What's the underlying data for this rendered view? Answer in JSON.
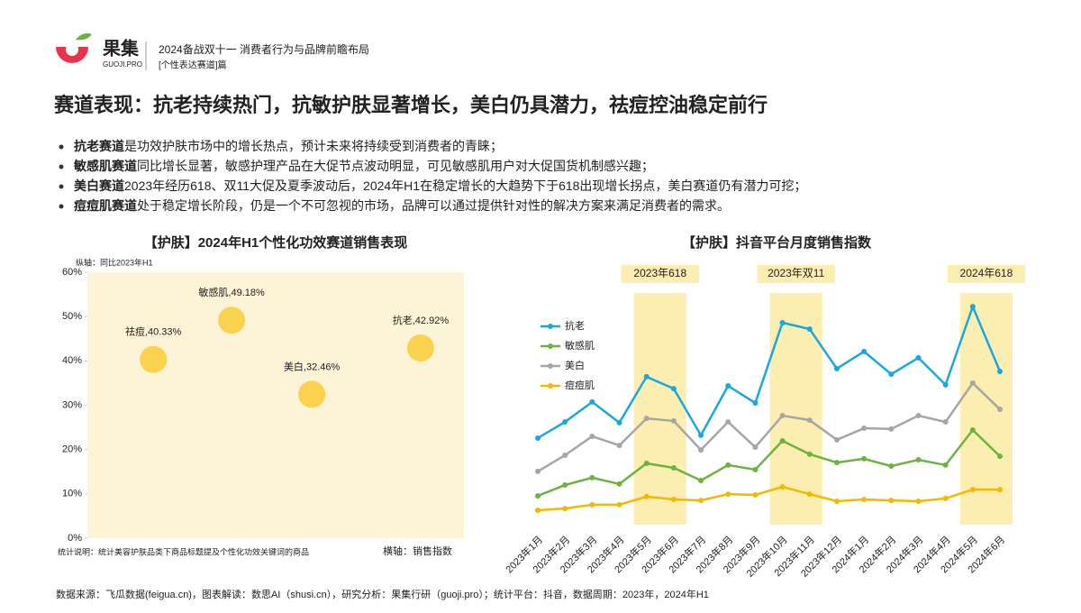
{
  "header": {
    "logo": "果集",
    "logo_sub": "GUOJI.PRO",
    "report_title": "2024备战双十一 消费者行为与品牌前瞻布局",
    "report_sub": "[个性表达赛道]篇",
    "headline": "赛道表现：抗老持续热门，抗敏护肤显著增长，美白仍具潜力，祛痘控油稳定前行"
  },
  "bullets": [
    {
      "term": "抗老赛道",
      "text": "是功效护肤市场中的增长热点，预计未来将持续受到消费者的青睐；"
    },
    {
      "term": "敏感肌赛道",
      "text": "同比增长显著，敏感护理产品在大促节点波动明显，可见敏感肌用户对大促国货机制感兴趣；"
    },
    {
      "term": "美白赛道",
      "text": "2023年经历618、双11大促及夏季波动后，2024年H1在稳定增长的大趋势下于618出现增长拐点，美白赛道仍有潜力可挖；"
    },
    {
      "term": "痘痘肌赛道",
      "text": "处于稳定增长阶段，仍是一个不可忽视的市场，品牌可以通过提供针对性的解决方案来满足消费者的需求。"
    }
  ],
  "footer": "数据来源：飞瓜数据(feigua.cn)，图表解读：数思AI（shusi.cn），研究分析：果集行研（guoji.pro）；统计平台：抖音，数据周期：2023年，2024年H1",
  "chart_data": [
    {
      "type": "scatter",
      "title": "【护肤】2024年H1个性化功效赛道销售表现",
      "y_label": "纵轴：同比2023年H1",
      "x_label": "横轴：销售指数",
      "note": "统计说明：统计美容护肤品类下商品标题提及个性化功效关键词的商品",
      "categories": [
        "祛痘",
        "敏感肌",
        "美白",
        "抗老"
      ],
      "x": [
        17.5,
        38.3,
        59.6,
        88.5
      ],
      "values": [
        40.33,
        49.18,
        32.46,
        42.92
      ],
      "value_labels": [
        "祛痘,40.33%",
        "敏感肌,49.18%",
        "美白,32.46%",
        "抗老,42.92%"
      ],
      "color": "#fbd24e",
      "background": "#fdf3d6",
      "xlim": [
        0,
        100
      ],
      "ylim": [
        0,
        60
      ],
      "yticks": [
        {
          "value": 0,
          "label": "0%"
        },
        {
          "value": 10,
          "label": "10%"
        },
        {
          "value": 20,
          "label": "20%"
        },
        {
          "value": 30,
          "label": "30%"
        },
        {
          "value": 40,
          "label": "40%"
        },
        {
          "value": 50,
          "label": "50%"
        },
        {
          "value": 60,
          "label": "60%"
        }
      ]
    },
    {
      "type": "line",
      "title": "【护肤】抖音平台月度销售指数",
      "categories": [
        "2023年1月",
        "2023年2月",
        "2023年3月",
        "2023年4月",
        "2023年5月",
        "2023年6月",
        "2023年7月",
        "2023年8月",
        "2023年9月",
        "2023年10月",
        "2023年11月",
        "2023年12月",
        "2024年1月",
        "2024年2月",
        "2024年3月",
        "2024年4月",
        "2024年5月",
        "2024年6月"
      ],
      "ylim": [
        0,
        100
      ],
      "series": [
        {
          "name": "抗老",
          "color": "#1aa7e0",
          "values": [
            34.3,
            40.7,
            48.6,
            40.4,
            58.6,
            53.9,
            35.4,
            55.0,
            48.2,
            80.0,
            77.5,
            61.8,
            68.6,
            59.6,
            66.1,
            55.4,
            86.4,
            60.7
          ]
        },
        {
          "name": "敏感肌",
          "color": "#6db33f",
          "values": [
            11.4,
            15.7,
            18.6,
            16.1,
            24.3,
            22.5,
            17.5,
            23.6,
            21.8,
            33.2,
            27.9,
            24.6,
            26.1,
            23.2,
            25.7,
            23.6,
            37.5,
            27.1
          ]
        },
        {
          "name": "美白",
          "color": "#a6a6a6",
          "values": [
            21.1,
            27.5,
            35.0,
            31.4,
            42.1,
            41.1,
            29.6,
            40.7,
            30.7,
            43.2,
            41.4,
            33.6,
            38.2,
            37.9,
            43.2,
            40.7,
            56.1,
            45.7
          ]
        },
        {
          "name": "痘痘肌",
          "color": "#f5b800",
          "values": [
            5.7,
            6.4,
            7.9,
            7.9,
            11.1,
            10.0,
            9.6,
            12.1,
            11.8,
            15.0,
            12.1,
            9.3,
            10.0,
            9.6,
            9.3,
            10.4,
            13.9,
            13.9
          ]
        }
      ],
      "highlights": [
        {
          "label": "2023年618",
          "start": "2023年5月",
          "end": "2023年6月"
        },
        {
          "label": "2023年双11",
          "start": "2023年10月",
          "end": "2023年11月"
        },
        {
          "label": "2024年618",
          "start": "2024年5月",
          "end": "2024年6月"
        }
      ],
      "highlight_color": "#fbeeb0"
    }
  ]
}
